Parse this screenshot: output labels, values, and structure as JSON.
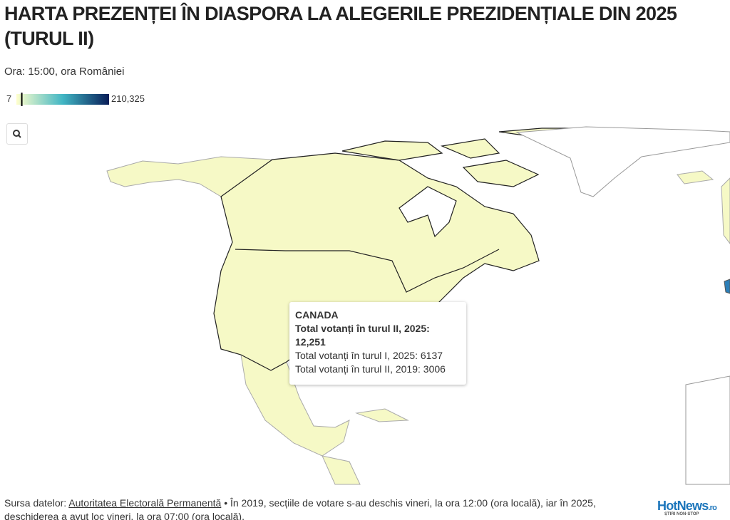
{
  "header": {
    "title": "HARTA PREZENȚEI ÎN DIASPORA LA ALEGERILE PREZIDENȚIALE DIN 2025 (TURUL II)",
    "subtitle": "Ora: 15:00, ora României"
  },
  "legend": {
    "min": 7,
    "max": {
      "value": 210325,
      "label": "210,325"
    }
  },
  "tooltip": {
    "country": "CANADA",
    "highlight": {
      "label": "Total votanți în turul II, 2025:",
      "value": {
        "value": 12251,
        "label": "12,251"
      }
    },
    "lines": [
      {
        "label": "Total votanți în turul I, 2025:",
        "value": 6137
      },
      {
        "label": "Total votanți în turul II, 2019:",
        "value": 3006
      }
    ]
  },
  "footer": {
    "source_label": "Sursa datelor:",
    "source_link": "Autoritatea Electorală Permanentă",
    "note": "• În 2019, secțiile de votare s-au deschis vineri, la ora 12:00 (ora locală), iar în 2025, deschiderea a avut loc vineri, la ora 07:00 (ora locală)."
  },
  "logo": {
    "name": "HotNews",
    "suffix": ".ro",
    "tagline": "ȘTIRI NON-STOP"
  }
}
